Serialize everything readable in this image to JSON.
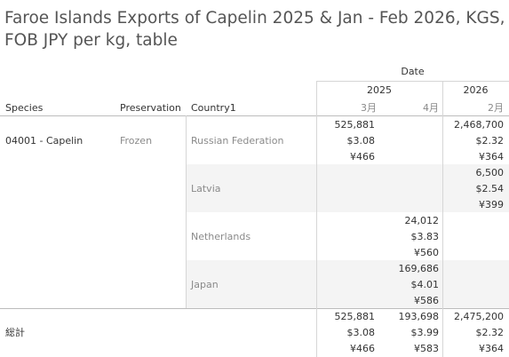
{
  "title": "Faroe Islands Exports of Capelin 2025 & Jan - Feb 2026, KGS, FOB JPY per kg, table",
  "headers": {
    "date": "Date",
    "year_2025": "2025",
    "year_2026": "2026",
    "species": "Species",
    "preservation": "Preservation",
    "country": "Country1",
    "m_2025_03": "3月",
    "m_2025_04": "4月",
    "m_2026_02": "2月"
  },
  "row": {
    "species": "04001 - Capelin",
    "preservation": "Frozen"
  },
  "countries": [
    {
      "name": "Russian Federation",
      "m_2025_03": [
        "525,881",
        "$3.08",
        "¥466"
      ],
      "m_2025_04": [
        "",
        "",
        ""
      ],
      "m_2026_02": [
        "2,468,700",
        "$2.32",
        "¥364"
      ]
    },
    {
      "name": "Latvia",
      "m_2025_03": [
        "",
        "",
        ""
      ],
      "m_2025_04": [
        "",
        "",
        ""
      ],
      "m_2026_02": [
        "6,500",
        "$2.54",
        "¥399"
      ]
    },
    {
      "name": "Netherlands",
      "m_2025_03": [
        "",
        "",
        ""
      ],
      "m_2025_04": [
        "24,012",
        "$3.83",
        "¥560"
      ],
      "m_2026_02": [
        "",
        "",
        ""
      ]
    },
    {
      "name": "Japan",
      "m_2025_03": [
        "",
        "",
        ""
      ],
      "m_2025_04": [
        "169,686",
        "$4.01",
        "¥586"
      ],
      "m_2026_02": [
        "",
        "",
        ""
      ]
    }
  ],
  "total": {
    "label": "総計",
    "m_2025_03": [
      "525,881",
      "$3.08",
      "¥466"
    ],
    "m_2025_04": [
      "193,698",
      "$3.99",
      "¥583"
    ],
    "m_2026_02": [
      "2,475,200",
      "$2.32",
      "¥364"
    ]
  }
}
